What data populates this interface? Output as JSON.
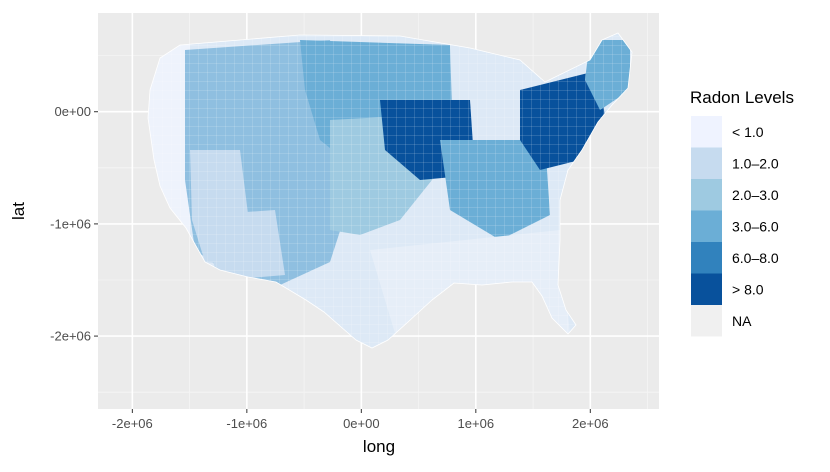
{
  "chart_data": {
    "type": "choropleth map",
    "xlabel": "long",
    "ylabel": "lat",
    "x_ticks": [
      "-2e+06",
      "-1e+06",
      "0e+00",
      "1e+06",
      "2e+06"
    ],
    "x_tick_values": [
      -2000000,
      -1000000,
      0,
      1000000,
      2000000
    ],
    "y_ticks": [
      "0e+00",
      "-1e+06",
      "-2e+06"
    ],
    "y_tick_values": [
      0,
      -1000000,
      -2000000
    ],
    "xlim": [
      -2300000,
      2600000
    ],
    "ylim": [
      -2650000,
      880000
    ],
    "grid": true,
    "legend": {
      "title": "Radon Levels",
      "placement": "right",
      "entries": [
        {
          "label": "< 1.0",
          "color": "#eff3ff"
        },
        {
          "label": "1.0–2.0",
          "color": "#c6dbef"
        },
        {
          "label": "2.0–3.0",
          "color": "#9ecae1"
        },
        {
          "label": "3.0–6.0",
          "color": "#6baed6"
        },
        {
          "label": "6.0–8.0",
          "color": "#3182bd"
        },
        {
          "label": "> 8.0",
          "color": "#08519c"
        },
        {
          "label": "NA",
          "color": "#f0f0f0"
        }
      ]
    }
  },
  "colors": {
    "panel_background": "#ebebeb",
    "grid_major": "#ffffff",
    "grid_minor": "#f5f5f5"
  }
}
